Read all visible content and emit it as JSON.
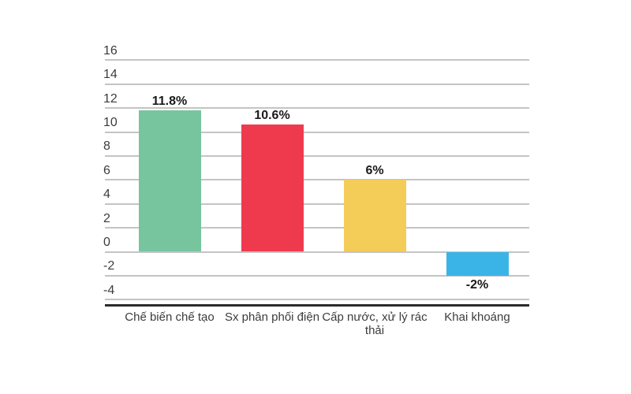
{
  "page": {
    "background_color": "#ffffff"
  },
  "chart_data": {
    "type": "bar",
    "title": "",
    "xlabel": "",
    "ylabel": "",
    "legend": "none",
    "grid": true,
    "categories": [
      "Chế biến chế tạo",
      "Sx phân phối điện",
      "Cấp nước, xử lý rác thải",
      "Khai khoáng"
    ],
    "values": [
      11.8,
      10.6,
      6,
      -2
    ],
    "value_labels": [
      "11.8%",
      "10.6%",
      "6%",
      "-2%"
    ],
    "bar_colors": [
      "#76c59e",
      "#ef3a4e",
      "#f4cc58",
      "#3ab4e7"
    ],
    "y_ticks": [
      16,
      14,
      12,
      10,
      8,
      6,
      4,
      2,
      0,
      -2,
      -4
    ],
    "ylim": [
      -4,
      16
    ],
    "colors": {
      "gridline": "#c4c4c4",
      "axis_line": "#2b2b2b",
      "tick_label": "#3c3c3c",
      "category_label": "#3c3c3c",
      "value_label": "#1a1a1a"
    }
  }
}
